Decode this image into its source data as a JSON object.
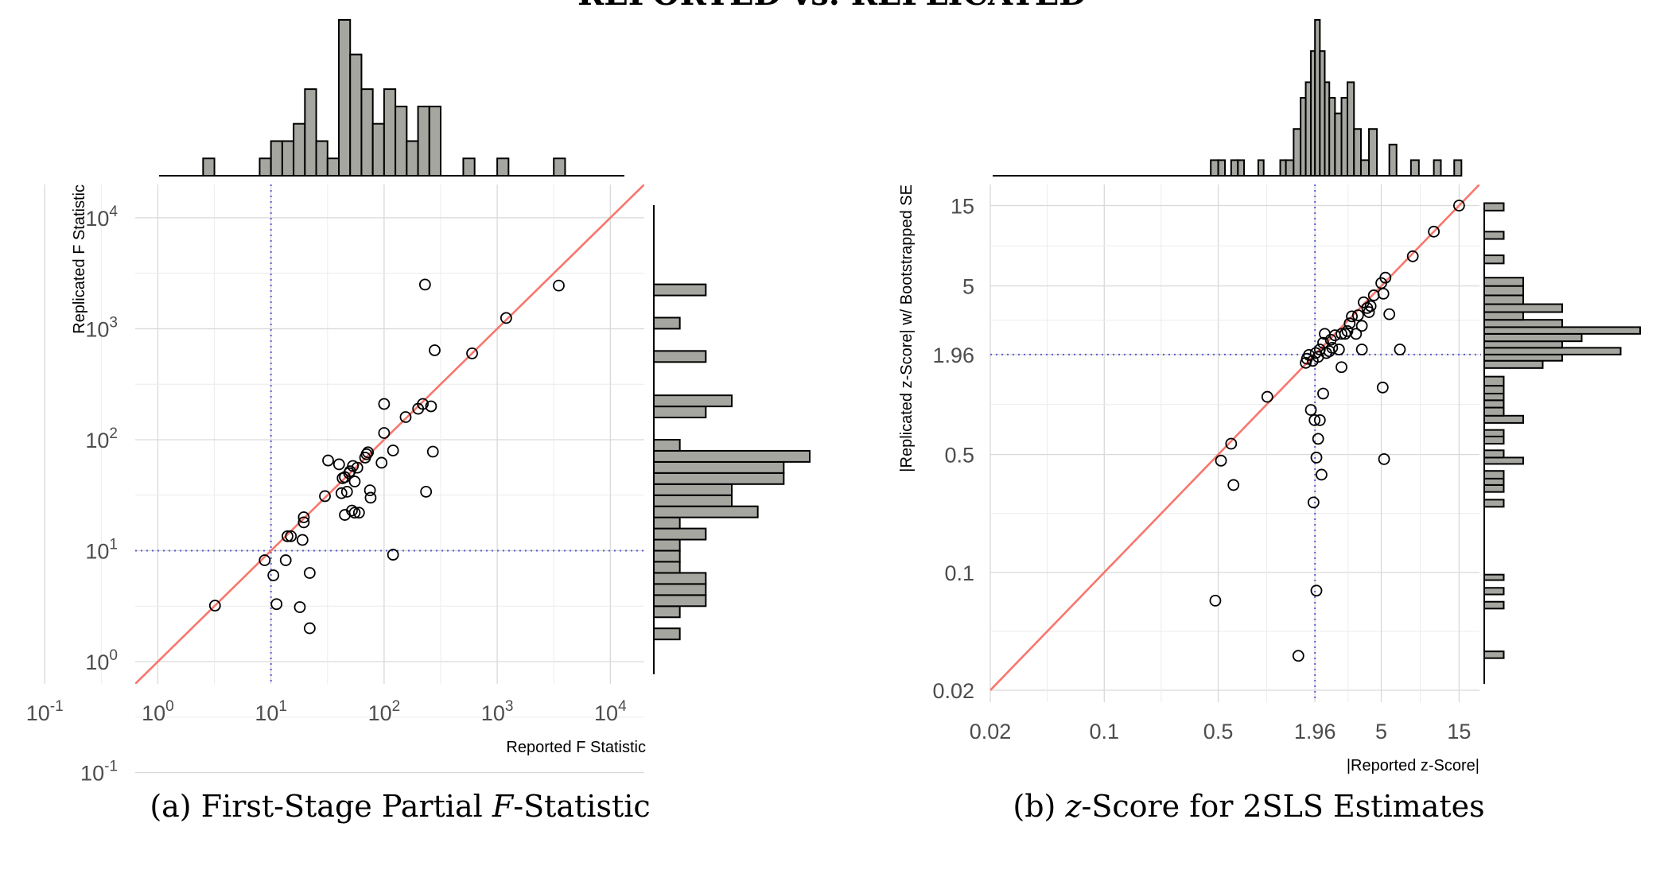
{
  "header": {
    "title": "REPORTED vs. REPLICATED"
  },
  "colors": {
    "diagonal": "#f8766d",
    "threshold": "#5b5bd6",
    "bars": "#a6a6a0",
    "grid": "#d9d9d9"
  },
  "chart_data": [
    {
      "type": "scatter",
      "caption": {
        "prefix": "(a) First-Stage Partial ",
        "italic": "F",
        "suffix": "-Statistic"
      },
      "xlabel": "Reported F Statistic",
      "ylabel": "Replicated F Statistic",
      "scale": "log10",
      "xlim": [
        -0.2,
        4.3
      ],
      "ylim": [
        -0.2,
        4.3
      ],
      "ticks": [
        {
          "base": "10",
          "exp": "-1",
          "v": -1
        },
        {
          "base": "10",
          "exp": "0",
          "v": 0
        },
        {
          "base": "10",
          "exp": "1",
          "v": 1
        },
        {
          "base": "10",
          "exp": "2",
          "v": 2
        },
        {
          "base": "10",
          "exp": "3",
          "v": 3
        },
        {
          "base": "10",
          "exp": "4",
          "v": 4
        }
      ],
      "threshold": 10,
      "points": [
        [
          3.2,
          3.2
        ],
        [
          8.8,
          8.2
        ],
        [
          10.5,
          6
        ],
        [
          11.2,
          3.3
        ],
        [
          13.5,
          8.2
        ],
        [
          14,
          13.5
        ],
        [
          15,
          13.5
        ],
        [
          18,
          3.1
        ],
        [
          19,
          12.5
        ],
        [
          19.5,
          20
        ],
        [
          19.5,
          18
        ],
        [
          22,
          6.3
        ],
        [
          22,
          2
        ],
        [
          30,
          31
        ],
        [
          32,
          65
        ],
        [
          40,
          60
        ],
        [
          42,
          33
        ],
        [
          43,
          45
        ],
        [
          45,
          21
        ],
        [
          45,
          46
        ],
        [
          47,
          34
        ],
        [
          49,
          50
        ],
        [
          50,
          52
        ],
        [
          52,
          23
        ],
        [
          53,
          58
        ],
        [
          55,
          42
        ],
        [
          55,
          22
        ],
        [
          58,
          56
        ],
        [
          60,
          22
        ],
        [
          68,
          69
        ],
        [
          70,
          74
        ],
        [
          72,
          77
        ],
        [
          75,
          35
        ],
        [
          76,
          30
        ],
        [
          95,
          62
        ],
        [
          100,
          115
        ],
        [
          100,
          210
        ],
        [
          120,
          9.2
        ],
        [
          120,
          80
        ],
        [
          155,
          160
        ],
        [
          200,
          190
        ],
        [
          220,
          210
        ],
        [
          230,
          2500
        ],
        [
          235,
          34
        ],
        [
          260,
          200
        ],
        [
          270,
          78
        ],
        [
          280,
          640
        ],
        [
          600,
          600
        ],
        [
          1200,
          1250
        ],
        [
          3500,
          2450
        ]
      ],
      "top_hist": {
        "start": -0.1,
        "width": 0.1,
        "counts": [
          1,
          0,
          1,
          2,
          3,
          2,
          1,
          2,
          1,
          1,
          0,
          1,
          0,
          0,
          0,
          0,
          0,
          0,
          0,
          0,
          0,
          0,
          0,
          0,
          0,
          0,
          0,
          0,
          0,
          0,
          0,
          0,
          0,
          0,
          0,
          0,
          0,
          0,
          0,
          0,
          0,
          0,
          0,
          0,
          0,
          0,
          0,
          0,
          0,
          0,
          0,
          0,
          0,
          0,
          0,
          0,
          1,
          0,
          0,
          0,
          0,
          0,
          0,
          0,
          0,
          0,
          1,
          1,
          0,
          0,
          2,
          3,
          4,
          2,
          5,
          3,
          2,
          2,
          1,
          1,
          1,
          1,
          2,
          1,
          1,
          2,
          1,
          1,
          1,
          1,
          1,
          0,
          1,
          1,
          0,
          0,
          0,
          1,
          0,
          0,
          1,
          0,
          1,
          1,
          1,
          1,
          0,
          0,
          1,
          0,
          0,
          0,
          0,
          0,
          0,
          0,
          0,
          0,
          0,
          0,
          0,
          0,
          0,
          0,
          0,
          0,
          0,
          0,
          0,
          0,
          0,
          0,
          0,
          0,
          0,
          0,
          0,
          0,
          0,
          0,
          0,
          0,
          0,
          0,
          0,
          0,
          0,
          0,
          0,
          0,
          0,
          0,
          0,
          0,
          0,
          0,
          0,
          0,
          0,
          0
        ]
      },
      "top_bars": [
        {
          "x0": 0.4,
          "x1": 0.5,
          "n": 1
        },
        {
          "x0": 0.9,
          "x1": 1.0,
          "n": 1
        },
        {
          "x0": 1.0,
          "x1": 1.1,
          "n": 2
        },
        {
          "x0": 1.1,
          "x1": 1.2,
          "n": 2
        },
        {
          "x0": 1.2,
          "x1": 1.3,
          "n": 3
        },
        {
          "x0": 1.3,
          "x1": 1.4,
          "n": 5
        },
        {
          "x0": 1.4,
          "x1": 1.5,
          "n": 2
        },
        {
          "x0": 1.5,
          "x1": 1.6,
          "n": 1
        },
        {
          "x0": 1.6,
          "x1": 1.7,
          "n": 9
        },
        {
          "x0": 1.7,
          "x1": 1.8,
          "n": 7
        },
        {
          "x0": 1.8,
          "x1": 1.9,
          "n": 5
        },
        {
          "x0": 1.9,
          "x1": 2.0,
          "n": 3
        },
        {
          "x0": 2.0,
          "x1": 2.1,
          "n": 5
        },
        {
          "x0": 2.1,
          "x1": 2.2,
          "n": 4
        },
        {
          "x0": 2.2,
          "x1": 2.3,
          "n": 2
        },
        {
          "x0": 2.3,
          "x1": 2.4,
          "n": 4
        },
        {
          "x0": 2.4,
          "x1": 2.5,
          "n": 4
        },
        {
          "x0": 2.7,
          "x1": 2.8,
          "n": 1
        },
        {
          "x0": 3.0,
          "x1": 3.1,
          "n": 1
        },
        {
          "x0": 3.5,
          "x1": 3.6,
          "n": 1
        }
      ],
      "right_bars": [
        {
          "y0": 0.2,
          "y1": 0.3,
          "n": 1
        },
        {
          "y0": 0.4,
          "y1": 0.5,
          "n": 1
        },
        {
          "y0": 0.5,
          "y1": 0.6,
          "n": 2
        },
        {
          "y0": 0.6,
          "y1": 0.7,
          "n": 2
        },
        {
          "y0": 0.7,
          "y1": 0.8,
          "n": 2
        },
        {
          "y0": 0.8,
          "y1": 0.9,
          "n": 1
        },
        {
          "y0": 0.9,
          "y1": 1.0,
          "n": 1
        },
        {
          "y0": 1.0,
          "y1": 1.1,
          "n": 1
        },
        {
          "y0": 1.1,
          "y1": 1.2,
          "n": 2
        },
        {
          "y0": 1.2,
          "y1": 1.3,
          "n": 1
        },
        {
          "y0": 1.3,
          "y1": 1.4,
          "n": 4
        },
        {
          "y0": 1.4,
          "y1": 1.5,
          "n": 3
        },
        {
          "y0": 1.5,
          "y1": 1.6,
          "n": 3
        },
        {
          "y0": 1.6,
          "y1": 1.7,
          "n": 5
        },
        {
          "y0": 1.7,
          "y1": 1.8,
          "n": 5
        },
        {
          "y0": 1.8,
          "y1": 1.9,
          "n": 6
        },
        {
          "y0": 1.9,
          "y1": 2.0,
          "n": 1
        },
        {
          "y0": 2.2,
          "y1": 2.3,
          "n": 2
        },
        {
          "y0": 2.3,
          "y1": 2.4,
          "n": 3
        },
        {
          "y0": 2.7,
          "y1": 2.8,
          "n": 2
        },
        {
          "y0": 3.0,
          "y1": 3.1,
          "n": 1
        },
        {
          "y0": 3.3,
          "y1": 3.4,
          "n": 2
        }
      ]
    },
    {
      "type": "scatter",
      "caption": {
        "prefix": "(b) ",
        "italic": "z",
        "suffix": "-Score for 2SLS Estimates"
      },
      "xlabel": "|Reported z-Score|",
      "ylabel": "|Replicated z-Score| w/ Bootstrapped SE",
      "scale": "log10",
      "xlim": [
        0.02,
        20
      ],
      "ylim": [
        0.017,
        20
      ],
      "ticks": [
        {
          "label": "0.02",
          "v": 0.02
        },
        {
          "label": "0.1",
          "v": 0.1
        },
        {
          "label": "0.5",
          "v": 0.5
        },
        {
          "label": "1.96",
          "v": 1.96
        },
        {
          "label": "5",
          "v": 5
        },
        {
          "label": "15",
          "v": 15
        }
      ],
      "threshold": 1.96,
      "points": [
        [
          0.48,
          0.068
        ],
        [
          0.52,
          0.46
        ],
        [
          0.6,
          0.58
        ],
        [
          0.62,
          0.33
        ],
        [
          1.0,
          1.1
        ],
        [
          1.55,
          0.032
        ],
        [
          1.72,
          1.75
        ],
        [
          1.75,
          1.85
        ],
        [
          1.85,
          0.92
        ],
        [
          1.8,
          1.95
        ],
        [
          1.9,
          1.8
        ],
        [
          1.92,
          0.26
        ],
        [
          1.95,
          0.8
        ],
        [
          1.98,
          2.0
        ],
        [
          2.0,
          0.078
        ],
        [
          2.0,
          0.48
        ],
        [
          2.05,
          0.62
        ],
        [
          2.05,
          1.9
        ],
        [
          2.1,
          2.1
        ],
        [
          2.1,
          0.8
        ],
        [
          2.15,
          0.38
        ],
        [
          2.2,
          1.15
        ],
        [
          2.2,
          2.3
        ],
        [
          2.25,
          2.6
        ],
        [
          2.3,
          2.0
        ],
        [
          2.4,
          2.05
        ],
        [
          2.45,
          2.4
        ],
        [
          2.5,
          2.15
        ],
        [
          2.6,
          2.55
        ],
        [
          2.75,
          2.1
        ],
        [
          2.85,
          2.6
        ],
        [
          2.85,
          1.65
        ],
        [
          3.0,
          2.6
        ],
        [
          3.1,
          2.7
        ],
        [
          3.2,
          3.0
        ],
        [
          3.3,
          3.3
        ],
        [
          3.5,
          2.6
        ],
        [
          3.6,
          3.35
        ],
        [
          3.8,
          2.1
        ],
        [
          3.8,
          2.9
        ],
        [
          3.9,
          4.0
        ],
        [
          4.1,
          3.7
        ],
        [
          4.2,
          3.5
        ],
        [
          4.3,
          3.8
        ],
        [
          4.5,
          4.4
        ],
        [
          5.0,
          5.2
        ],
        [
          5.1,
          1.25
        ],
        [
          5.15,
          4.5
        ],
        [
          5.2,
          0.47
        ],
        [
          5.3,
          5.6
        ],
        [
          5.6,
          3.4
        ],
        [
          6.5,
          2.1
        ],
        [
          7.8,
          7.5
        ],
        [
          10.5,
          10.5
        ],
        [
          15.0,
          15.0
        ]
      ],
      "top_bars": [
        {
          "x0": 0.45,
          "x1": 0.5,
          "n": 1
        },
        {
          "x0": 0.5,
          "x1": 0.55,
          "n": 1
        },
        {
          "x0": 0.6,
          "x1": 0.66,
          "n": 1
        },
        {
          "x0": 0.66,
          "x1": 0.72,
          "n": 1
        },
        {
          "x0": 0.88,
          "x1": 0.95,
          "n": 1
        },
        {
          "x0": 1.2,
          "x1": 1.3,
          "n": 1
        },
        {
          "x0": 1.3,
          "x1": 1.45,
          "n": 1
        },
        {
          "x0": 1.45,
          "x1": 1.6,
          "n": 3
        },
        {
          "x0": 1.6,
          "x1": 1.72,
          "n": 5
        },
        {
          "x0": 1.72,
          "x1": 1.85,
          "n": 6
        },
        {
          "x0": 1.85,
          "x1": 1.96,
          "n": 8
        },
        {
          "x0": 1.96,
          "x1": 2.1,
          "n": 10
        },
        {
          "x0": 2.1,
          "x1": 2.25,
          "n": 8
        },
        {
          "x0": 2.25,
          "x1": 2.4,
          "n": 6
        },
        {
          "x0": 2.4,
          "x1": 2.6,
          "n": 5
        },
        {
          "x0": 2.6,
          "x1": 2.85,
          "n": 4
        },
        {
          "x0": 2.85,
          "x1": 3.1,
          "n": 5
        },
        {
          "x0": 3.1,
          "x1": 3.4,
          "n": 6
        },
        {
          "x0": 3.4,
          "x1": 3.75,
          "n": 3
        },
        {
          "x0": 3.75,
          "x1": 4.2,
          "n": 1
        },
        {
          "x0": 4.2,
          "x1": 4.7,
          "n": 3
        },
        {
          "x0": 5.6,
          "x1": 6.2,
          "n": 2
        },
        {
          "x0": 7.6,
          "x1": 8.5,
          "n": 1
        },
        {
          "x0": 10.5,
          "x1": 11.6,
          "n": 1
        },
        {
          "x0": 14.0,
          "x1": 15.5,
          "n": 1
        }
      ],
      "right_bars": [
        {
          "y0": 0.031,
          "y1": 0.034,
          "n": 1
        },
        {
          "y0": 0.061,
          "y1": 0.067,
          "n": 1
        },
        {
          "y0": 0.074,
          "y1": 0.081,
          "n": 1
        },
        {
          "y0": 0.09,
          "y1": 0.097,
          "n": 1
        },
        {
          "y0": 0.245,
          "y1": 0.27,
          "n": 1
        },
        {
          "y0": 0.3,
          "y1": 0.33,
          "n": 1
        },
        {
          "y0": 0.33,
          "y1": 0.36,
          "n": 1
        },
        {
          "y0": 0.36,
          "y1": 0.4,
          "n": 1
        },
        {
          "y0": 0.44,
          "y1": 0.48,
          "n": 2
        },
        {
          "y0": 0.48,
          "y1": 0.53,
          "n": 1
        },
        {
          "y0": 0.58,
          "y1": 0.64,
          "n": 1
        },
        {
          "y0": 0.64,
          "y1": 0.7,
          "n": 1
        },
        {
          "y0": 0.77,
          "y1": 0.85,
          "n": 2
        },
        {
          "y0": 0.85,
          "y1": 0.95,
          "n": 1
        },
        {
          "y0": 0.95,
          "y1": 1.05,
          "n": 1
        },
        {
          "y0": 1.05,
          "y1": 1.15,
          "n": 1
        },
        {
          "y0": 1.15,
          "y1": 1.28,
          "n": 1
        },
        {
          "y0": 1.28,
          "y1": 1.45,
          "n": 1
        },
        {
          "y0": 1.63,
          "y1": 1.8,
          "n": 3
        },
        {
          "y0": 1.8,
          "y1": 1.96,
          "n": 4
        },
        {
          "y0": 1.96,
          "y1": 2.15,
          "n": 7
        },
        {
          "y0": 2.15,
          "y1": 2.35,
          "n": 4
        },
        {
          "y0": 2.35,
          "y1": 2.6,
          "n": 5
        },
        {
          "y0": 2.6,
          "y1": 2.85,
          "n": 8
        },
        {
          "y0": 2.85,
          "y1": 3.15,
          "n": 4
        },
        {
          "y0": 3.15,
          "y1": 3.5,
          "n": 2
        },
        {
          "y0": 3.5,
          "y1": 3.9,
          "n": 4
        },
        {
          "y0": 3.9,
          "y1": 4.4,
          "n": 2
        },
        {
          "y0": 4.4,
          "y1": 5.0,
          "n": 2
        },
        {
          "y0": 5.0,
          "y1": 5.6,
          "n": 2
        },
        {
          "y0": 6.8,
          "y1": 7.6,
          "n": 1
        },
        {
          "y0": 9.5,
          "y1": 10.5,
          "n": 1
        },
        {
          "y0": 14.0,
          "y1": 15.5,
          "n": 1
        }
      ]
    }
  ]
}
